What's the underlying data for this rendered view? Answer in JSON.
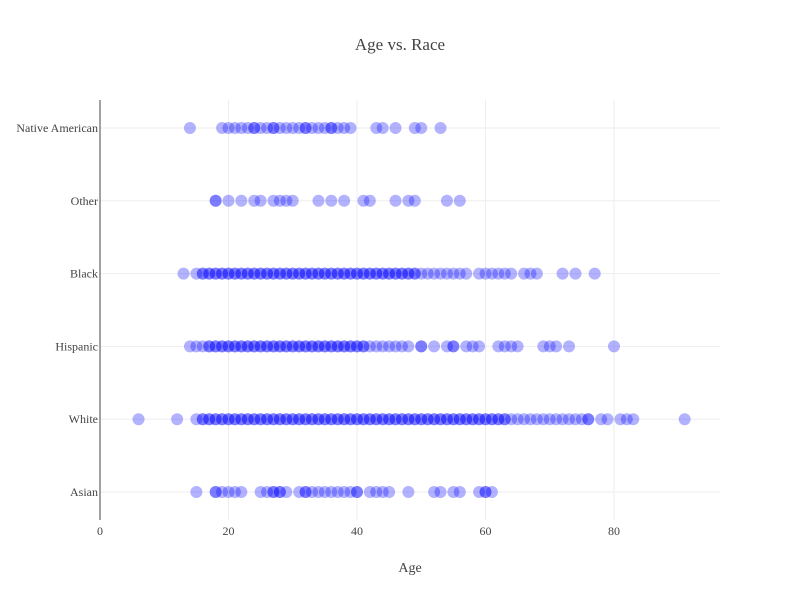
{
  "chart_data": {
    "type": "scatter",
    "title": "Age vs. Race",
    "xlabel": "Age",
    "ylabel": "",
    "xlim": [
      0,
      96.5
    ],
    "xticks": [
      0,
      20,
      40,
      60,
      80
    ],
    "categories": [
      "Asian",
      "White",
      "Hispanic",
      "Black",
      "Other",
      "Native American"
    ],
    "grid": true,
    "legend": "none",
    "marker_color": "#0000ff",
    "marker_opacity": 0.3,
    "series": [
      {
        "category": "Asian",
        "x": [
          15,
          18,
          18,
          19,
          20,
          21,
          22,
          25,
          26,
          27,
          27,
          28,
          28,
          29,
          31,
          32,
          32,
          33,
          34,
          35,
          36,
          37,
          38,
          39,
          40,
          40,
          42,
          43,
          44,
          45,
          48,
          52,
          53,
          55,
          56,
          59,
          60,
          60,
          61
        ]
      },
      {
        "category": "White",
        "x": [
          6,
          12,
          15,
          16,
          16,
          17,
          17,
          18,
          18,
          19,
          19,
          20,
          20,
          21,
          21,
          22,
          22,
          23,
          23,
          24,
          24,
          25,
          25,
          26,
          26,
          27,
          27,
          28,
          28,
          29,
          29,
          30,
          30,
          31,
          31,
          32,
          32,
          33,
          33,
          34,
          34,
          35,
          35,
          36,
          36,
          37,
          37,
          38,
          38,
          39,
          39,
          40,
          40,
          41,
          41,
          42,
          42,
          43,
          43,
          44,
          44,
          45,
          45,
          46,
          46,
          47,
          47,
          48,
          48,
          49,
          49,
          50,
          50,
          51,
          51,
          52,
          52,
          53,
          53,
          54,
          54,
          55,
          55,
          56,
          56,
          57,
          57,
          58,
          58,
          59,
          59,
          60,
          60,
          61,
          61,
          62,
          62,
          63,
          63,
          64,
          65,
          66,
          67,
          68,
          69,
          70,
          71,
          72,
          73,
          74,
          75,
          76,
          76,
          78,
          79,
          81,
          82,
          83,
          91
        ]
      },
      {
        "category": "Hispanic",
        "x": [
          14,
          15,
          16,
          17,
          17,
          18,
          18,
          19,
          19,
          20,
          20,
          21,
          21,
          22,
          22,
          23,
          23,
          24,
          24,
          25,
          25,
          26,
          26,
          27,
          27,
          28,
          28,
          29,
          29,
          30,
          30,
          31,
          31,
          32,
          32,
          33,
          33,
          34,
          34,
          35,
          35,
          36,
          36,
          37,
          37,
          38,
          38,
          39,
          39,
          40,
          40,
          41,
          41,
          42,
          43,
          44,
          45,
          46,
          47,
          48,
          50,
          50,
          52,
          54,
          55,
          55,
          57,
          58,
          59,
          62,
          63,
          64,
          65,
          69,
          70,
          71,
          73,
          80
        ]
      },
      {
        "category": "Black",
        "x": [
          13,
          15,
          16,
          16,
          17,
          17,
          18,
          18,
          19,
          19,
          20,
          20,
          21,
          21,
          22,
          22,
          23,
          23,
          24,
          24,
          25,
          25,
          26,
          26,
          27,
          27,
          28,
          28,
          29,
          29,
          30,
          30,
          31,
          31,
          32,
          32,
          33,
          33,
          34,
          34,
          35,
          35,
          36,
          36,
          37,
          37,
          38,
          38,
          39,
          39,
          40,
          40,
          41,
          41,
          42,
          42,
          43,
          43,
          44,
          44,
          45,
          45,
          46,
          46,
          47,
          47,
          48,
          48,
          49,
          49,
          50,
          51,
          52,
          53,
          54,
          55,
          56,
          57,
          59,
          60,
          61,
          62,
          63,
          64,
          66,
          67,
          68,
          72,
          74,
          77
        ]
      },
      {
        "category": "Other",
        "x": [
          18,
          18,
          20,
          22,
          24,
          25,
          27,
          28,
          29,
          30,
          34,
          36,
          38,
          41,
          42,
          46,
          48,
          49,
          54,
          56
        ]
      },
      {
        "category": "Native American",
        "x": [
          14,
          19,
          20,
          21,
          22,
          23,
          24,
          24,
          25,
          26,
          27,
          27,
          28,
          29,
          30,
          31,
          32,
          32,
          33,
          34,
          35,
          36,
          36,
          37,
          38,
          39,
          43,
          44,
          46,
          49,
          50,
          53
        ]
      }
    ]
  }
}
